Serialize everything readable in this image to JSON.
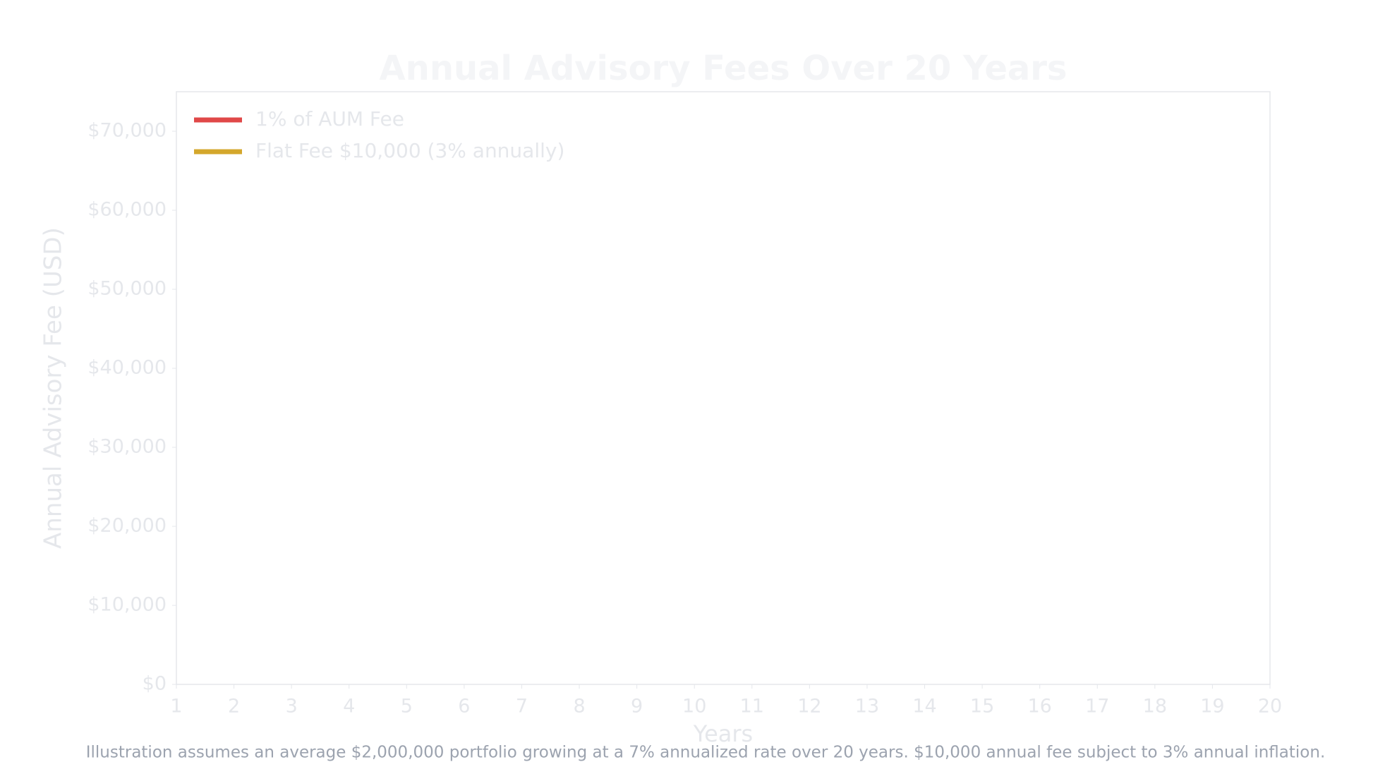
{
  "chart_data": {
    "type": "line",
    "title": "Annual Advisory Fees Over 20 Years",
    "x_label": "Years",
    "y_label": "Annual Advisory Fee (USD)",
    "footnote": "Illustration assumes an average $2,000,000 portfolio growing at a 7% annualized rate over 20 years. $10,000 annual fee subject to 3% annual inflation.",
    "series": [
      {
        "name": "1% of AUM Fee",
        "color": "#e04848"
      },
      {
        "name": "Flat Fee $10,000 (3% annually)",
        "color": "#d4a72c"
      }
    ],
    "xlim": [
      1,
      20
    ],
    "xticks": [
      1,
      2,
      3,
      4,
      5,
      6,
      7,
      8,
      9,
      10,
      11,
      12,
      13,
      14,
      15,
      16,
      17,
      18,
      19,
      20
    ],
    "ylim": [
      0,
      75000
    ],
    "yticks": [
      {
        "value": 0,
        "label": "$0"
      },
      {
        "value": 10000,
        "label": "$10,000"
      },
      {
        "value": 20000,
        "label": "$20,000"
      },
      {
        "value": 30000,
        "label": "$30,000"
      },
      {
        "value": 40000,
        "label": "$40,000"
      },
      {
        "value": 50000,
        "label": "$50,000"
      },
      {
        "value": 60000,
        "label": "$60,000"
      },
      {
        "value": 70000,
        "label": "$70,000"
      }
    ],
    "legend": "upper left"
  }
}
